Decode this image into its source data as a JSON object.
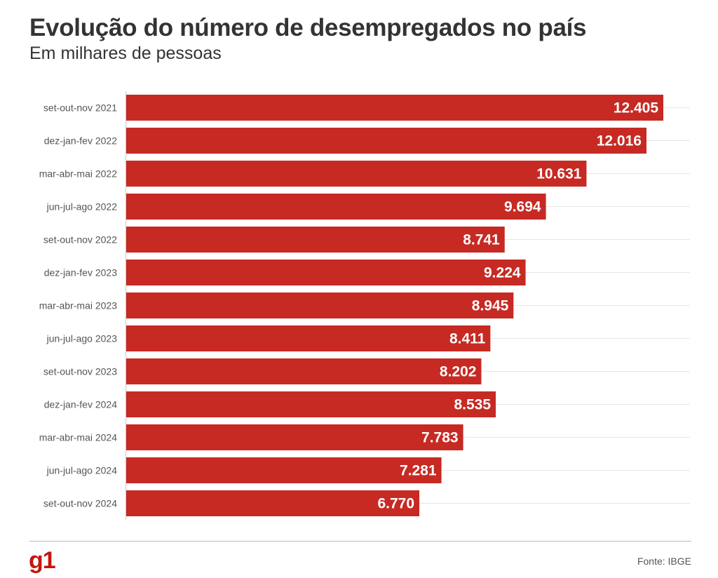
{
  "header": {
    "title": "Evolução do número de desempregados no país",
    "subtitle": "Em milhares de pessoas"
  },
  "footer": {
    "brand": "g1",
    "source": "Fonte: IBGE"
  },
  "colors": {
    "bar": "#c62a23",
    "label": "#ffffff",
    "grid": "#e6e6e6",
    "brand": "#c4170c"
  },
  "chart_data": {
    "type": "bar",
    "orientation": "horizontal",
    "title": "Evolução do número de desempregados no país",
    "subtitle": "Em milhares de pessoas",
    "categories": [
      "set-out-nov 2021",
      "dez-jan-fev 2022",
      "mar-abr-mai 2022",
      "jun-jul-ago 2022",
      "set-out-nov 2022",
      "dez-jan-fev 2023",
      "mar-abr-mai 2023",
      "jun-jul-ago 2023",
      "set-out-nov 2023",
      "dez-jan-fev 2024",
      "mar-abr-mai 2024",
      "jun-jul-ago 2024",
      "set-out-nov 2024"
    ],
    "values": [
      12405,
      12016,
      10631,
      9694,
      8741,
      9224,
      8945,
      8411,
      8202,
      8535,
      7783,
      7281,
      6770
    ],
    "value_labels": [
      "12.405",
      "12.016",
      "10.631",
      "9.694",
      "8.741",
      "9.224",
      "8.945",
      "8.411",
      "8.202",
      "8.535",
      "7.783",
      "7.281",
      "6.770"
    ],
    "xlim": [
      0,
      12405
    ],
    "grid": true,
    "legend": "none"
  }
}
